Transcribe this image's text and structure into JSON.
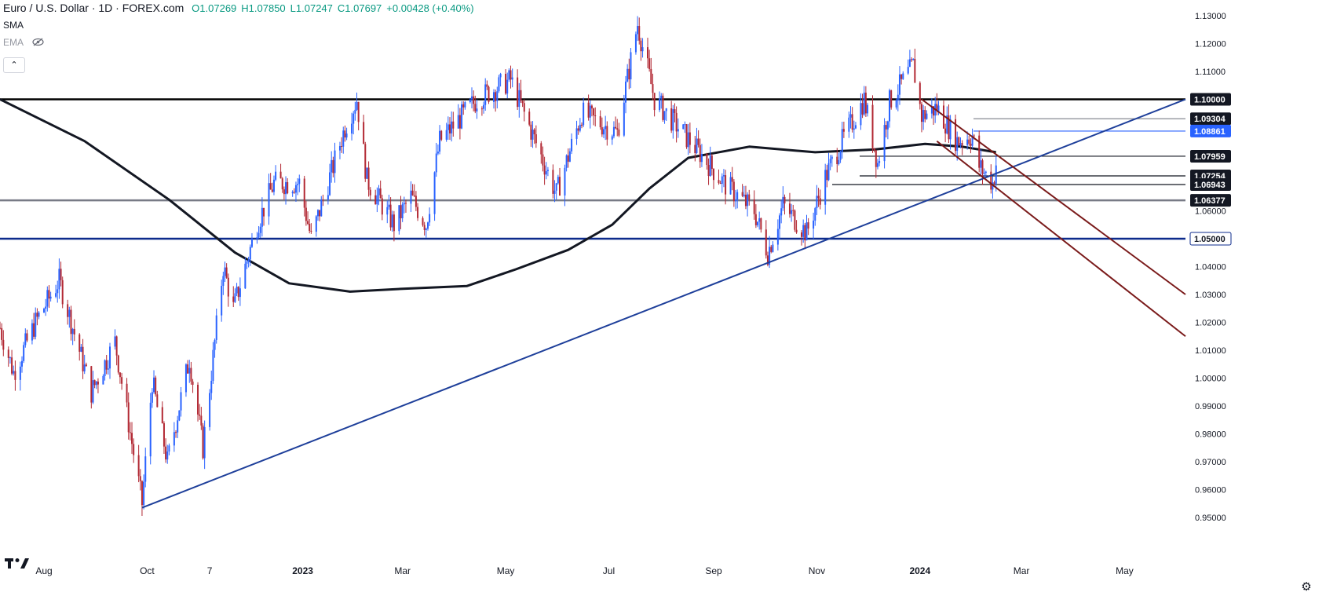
{
  "legend": {
    "symbol": "Euro / U.S. Dollar · 1D · FOREX.com",
    "open": "O1.07269",
    "high": "H1.07850",
    "low": "L1.07247",
    "close": "C1.07697",
    "change": "+0.00428 (+0.40%)",
    "up_color": "#089981"
  },
  "indicators": {
    "sma_label": "SMA",
    "ema_label": "EMA",
    "ema_hidden_icon": "eye-off-icon",
    "collapse_icon": "chevron-up-icon"
  },
  "logo_text": "17",
  "settings_icon": "gear-icon",
  "chart_data": {
    "type": "candlestick",
    "title": "Euro / U.S. Dollar · 1D · FOREX.com",
    "ylim": [
      0.95,
      1.13
    ],
    "y_ticks": [
      1.13,
      1.12,
      1.11,
      1.1,
      1.09,
      1.08,
      1.07,
      1.06,
      1.05,
      1.04,
      1.03,
      1.02,
      1.01,
      1.0,
      0.99,
      0.98,
      0.97,
      0.96,
      0.95
    ],
    "y_tick_labels": [
      "1.13000",
      "1.12000",
      "1.11000",
      "1.10000",
      "1.09000",
      "1.08000",
      "1.07000",
      "1.06000",
      "1.05000",
      "1.04000",
      "1.03000",
      "1.02000",
      "1.01000",
      "1.00000",
      "0.99000",
      "0.98000",
      "0.97000",
      "0.96000",
      "0.95000"
    ],
    "x_ticks": [
      {
        "label": "Aug",
        "date": "2022-08-01"
      },
      {
        "label": "Oct",
        "date": "2022-10-01"
      },
      {
        "label": "7",
        "date": "2022-11-07"
      },
      {
        "label": "2023",
        "date": "2023-01-01"
      },
      {
        "label": "Mar",
        "date": "2023-03-01"
      },
      {
        "label": "May",
        "date": "2023-05-01"
      },
      {
        "label": "Jul",
        "date": "2023-07-01"
      },
      {
        "label": "Sep",
        "date": "2023-09-01"
      },
      {
        "label": "Nov",
        "date": "2023-11-01"
      },
      {
        "label": "2024",
        "date": "2024-01-01"
      },
      {
        "label": "Mar",
        "date": "2024-03-01"
      },
      {
        "label": "May",
        "date": "2024-05-01"
      }
    ],
    "xlim": [
      "2022-07-06",
      "2024-06-06"
    ],
    "up_color": "#2962ff",
    "down_color": "#b22833",
    "price_path": [
      {
        "date": "2022-07-06",
        "close": 1.018
      },
      {
        "date": "2022-07-14",
        "close": 1.002
      },
      {
        "date": "2022-07-27",
        "close": 1.02
      },
      {
        "date": "2022-08-10",
        "close": 1.035
      },
      {
        "date": "2022-08-29",
        "close": 0.995
      },
      {
        "date": "2022-09-12",
        "close": 1.013
      },
      {
        "date": "2022-09-28",
        "close": 0.955
      },
      {
        "date": "2022-10-04",
        "close": 0.999
      },
      {
        "date": "2022-10-13",
        "close": 0.97
      },
      {
        "date": "2022-10-26",
        "close": 1.007
      },
      {
        "date": "2022-11-03",
        "close": 0.975
      },
      {
        "date": "2022-11-15",
        "close": 1.04
      },
      {
        "date": "2022-11-21",
        "close": 1.025
      },
      {
        "date": "2022-12-05",
        "close": 1.055
      },
      {
        "date": "2022-12-15",
        "close": 1.07
      },
      {
        "date": "2022-12-30",
        "close": 1.07
      },
      {
        "date": "2023-01-06",
        "close": 1.05
      },
      {
        "date": "2023-01-26",
        "close": 1.09
      },
      {
        "date": "2023-02-02",
        "close": 1.1
      },
      {
        "date": "2023-02-08",
        "close": 1.071
      },
      {
        "date": "2023-02-24",
        "close": 1.055
      },
      {
        "date": "2023-03-06",
        "close": 1.065
      },
      {
        "date": "2023-03-15",
        "close": 1.055
      },
      {
        "date": "2023-03-23",
        "close": 1.085
      },
      {
        "date": "2023-04-14",
        "close": 1.1
      },
      {
        "date": "2023-05-04",
        "close": 1.107
      },
      {
        "date": "2023-05-31",
        "close": 1.066
      },
      {
        "date": "2023-06-15",
        "close": 1.095
      },
      {
        "date": "2023-07-06",
        "close": 1.088
      },
      {
        "date": "2023-07-18",
        "close": 1.127
      },
      {
        "date": "2023-07-28",
        "close": 1.1
      },
      {
        "date": "2023-08-25",
        "close": 1.08
      },
      {
        "date": "2023-09-07",
        "close": 1.07
      },
      {
        "date": "2023-09-25",
        "close": 1.06
      },
      {
        "date": "2023-10-03",
        "close": 1.045
      },
      {
        "date": "2023-10-12",
        "close": 1.062
      },
      {
        "date": "2023-10-26",
        "close": 1.052
      },
      {
        "date": "2023-11-06",
        "close": 1.072
      },
      {
        "date": "2023-11-16",
        "close": 1.085
      },
      {
        "date": "2023-11-29",
        "close": 1.1
      },
      {
        "date": "2023-12-07",
        "close": 1.077
      },
      {
        "date": "2023-12-14",
        "close": 1.099
      },
      {
        "date": "2023-12-28",
        "close": 1.112
      },
      {
        "date": "2024-01-02",
        "close": 1.094
      },
      {
        "date": "2024-01-11",
        "close": 1.097
      },
      {
        "date": "2024-01-23",
        "close": 1.085
      },
      {
        "date": "2024-02-01",
        "close": 1.087
      },
      {
        "date": "2024-02-05",
        "close": 1.076
      },
      {
        "date": "2024-02-13",
        "close": 1.07
      },
      {
        "date": "2024-02-14",
        "close": 1.073
      },
      {
        "date": "2024-02-15",
        "close": 1.077
      }
    ],
    "sma_200": [
      {
        "date": "2022-07-06",
        "value": 1.1
      },
      {
        "date": "2022-08-25",
        "value": 1.085
      },
      {
        "date": "2022-10-14",
        "value": 1.064
      },
      {
        "date": "2022-11-22",
        "value": 1.045
      },
      {
        "date": "2022-12-24",
        "value": 1.034
      },
      {
        "date": "2023-01-29",
        "value": 1.031
      },
      {
        "date": "2023-02-28",
        "value": 1.032
      },
      {
        "date": "2023-04-08",
        "value": 1.033
      },
      {
        "date": "2023-05-07",
        "value": 1.039
      },
      {
        "date": "2023-06-07",
        "value": 1.046
      },
      {
        "date": "2023-07-03",
        "value": 1.055
      },
      {
        "date": "2023-07-25",
        "value": 1.068
      },
      {
        "date": "2023-08-17",
        "value": 1.079
      },
      {
        "date": "2023-09-22",
        "value": 1.083
      },
      {
        "date": "2023-10-31",
        "value": 1.081
      },
      {
        "date": "2023-12-05",
        "value": 1.082
      },
      {
        "date": "2024-01-04",
        "value": 1.084
      },
      {
        "date": "2024-01-26",
        "value": 1.083
      },
      {
        "date": "2024-02-15",
        "value": 1.081
      }
    ],
    "horizontal_levels": [
      {
        "value": 1.1,
        "label": "1.10000",
        "color": "#000000",
        "style": "thick"
      },
      {
        "value": 1.09304,
        "label": "1.09304",
        "color": "#787b86",
        "style": "thin"
      },
      {
        "value": 1.08861,
        "label": "1.08861",
        "color": "#2962ff",
        "style": "thin",
        "highlight": true
      },
      {
        "value": 1.07959,
        "label": "1.07959",
        "color": "#131722",
        "style": "thin"
      },
      {
        "value": 1.07254,
        "label": "1.07254",
        "color": "#131722",
        "style": "thin"
      },
      {
        "value": 1.06943,
        "label": "1.06943",
        "color": "#131722",
        "style": "thin"
      },
      {
        "value": 1.06377,
        "label": "1.06377",
        "color": "#787b86",
        "style": "thick"
      },
      {
        "value": 1.05,
        "label": "1.05000",
        "color": "#0d2b8c",
        "style": "thick"
      }
    ],
    "trendlines": [
      {
        "name": "",
        "color": "#1e3f9a",
        "from": {
          "date": "2022-09-28",
          "value": 0.9535
        },
        "to": {
          "date": "2024-06-06",
          "value": 1.1
        }
      },
      {
        "name": "",
        "color": "#7a1a1a",
        "from": {
          "date": "2024-01-02",
          "value": 1.1
        },
        "to": {
          "date": "2024-06-06",
          "value": 1.03
        }
      },
      {
        "name": "",
        "color": "#7a1a1a",
        "from": {
          "date": "2024-01-11",
          "value": 1.085
        },
        "to": {
          "date": "2024-06-06",
          "value": 1.015
        }
      }
    ],
    "grid": false,
    "legend_position": "top-left"
  }
}
